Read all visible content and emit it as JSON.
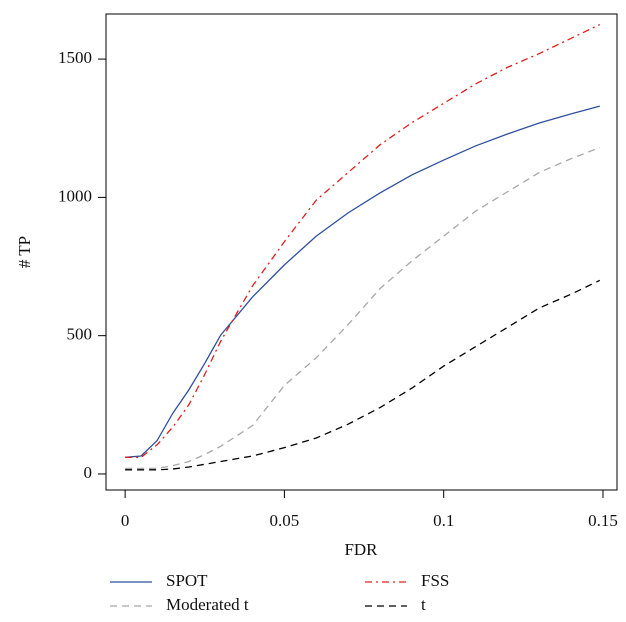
{
  "chart_data": {
    "type": "line",
    "xlabel": "FDR",
    "ylabel": "# TP",
    "x": [
      0,
      0.005,
      0.01,
      0.015,
      0.02,
      0.025,
      0.03,
      0.04,
      0.05,
      0.06,
      0.07,
      0.08,
      0.09,
      0.1,
      0.11,
      0.12,
      0.13,
      0.14,
      0.149
    ],
    "series": [
      {
        "name": "SPOT",
        "color": "#2f4f9f",
        "dash": "solid",
        "values": [
          60,
          65,
          120,
          220,
          304,
          400,
          502,
          640,
          756,
          860,
          944,
          1016,
          1081,
          1135,
          1186,
          1229,
          1269,
          1302,
          1330
        ]
      },
      {
        "name": "FSS",
        "color": "#e0201c",
        "dash": "dashdot",
        "values": [
          60,
          60,
          105,
          170,
          250,
          360,
          480,
          680,
          840,
          990,
          1090,
          1190,
          1270,
          1340,
          1410,
          1470,
          1520,
          1575,
          1625
        ]
      },
      {
        "name": "Moderated t",
        "color": "#a8a8a8",
        "dash": "dashed",
        "values": [
          20,
          20,
          20,
          30,
          45,
          70,
          100,
          175,
          320,
          420,
          540,
          670,
          770,
          860,
          950,
          1020,
          1090,
          1140,
          1180
        ]
      },
      {
        "name": "t",
        "color": "#000000",
        "dash": "dashed",
        "values": [
          15,
          15,
          15,
          18,
          25,
          35,
          45,
          65,
          95,
          130,
          180,
          240,
          310,
          390,
          460,
          530,
          600,
          650,
          700
        ]
      }
    ],
    "xlim": [
      -0.006,
      0.1544
    ],
    "ylim": [
      -58,
      1663
    ],
    "xticks": [
      0,
      0.05,
      0.1,
      0.15
    ],
    "yticks": [
      0,
      500,
      1000,
      1500
    ],
    "grid": false,
    "legend": "bottom"
  }
}
